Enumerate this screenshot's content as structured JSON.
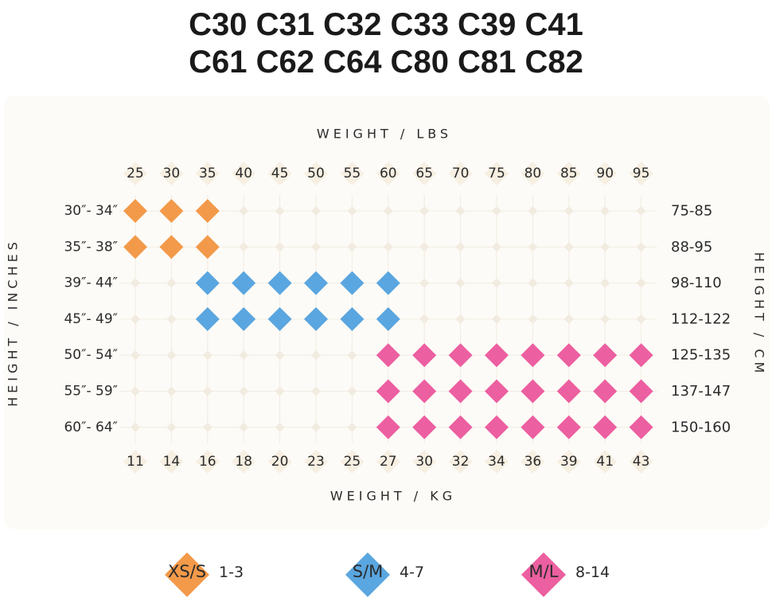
{
  "title": {
    "line1": "C30 C31 C32 C33 C39 C41",
    "line2": "C61 C62 C64 C80 C81 C82"
  },
  "colors": {
    "xs_s": "#f39a4a",
    "s_m": "#5aa6e0",
    "m_l": "#ec5fa0",
    "empty": "#f1ebe0",
    "panel": "#fdfbf7"
  },
  "chart_data": {
    "type": "heatmap",
    "title": "C30 C31 C32 C33 C39 C41 C61 C62 C64 C80 C81 C82",
    "xlabel_top": "WEIGHT / LBS",
    "xlabel_bottom": "WEIGHT / KG",
    "ylabel_left": "HEIGHT / INCHES",
    "ylabel_right": "HEIGHT / CM",
    "x_lbs": [
      "25",
      "30",
      "35",
      "40",
      "45",
      "50",
      "55",
      "60",
      "65",
      "70",
      "75",
      "80",
      "85",
      "90",
      "95"
    ],
    "x_kg": [
      "11",
      "14",
      "16",
      "18",
      "20",
      "23",
      "25",
      "27",
      "30",
      "32",
      "34",
      "36",
      "39",
      "41",
      "43"
    ],
    "y_inches": [
      "30″- 34″",
      "35″- 38″",
      "39″- 44″",
      "45″- 49″",
      "50″- 54″",
      "55″- 59″",
      "60″- 64″"
    ],
    "y_cm": [
      "75-85",
      "88-95",
      "98-110",
      "112-122",
      "125-135",
      "137-147",
      "150-160"
    ],
    "sizes": [
      "XS/S",
      "S/M",
      "M/L"
    ],
    "cells": [
      [
        "XS/S",
        "XS/S",
        "XS/S",
        "",
        "",
        "",
        "",
        "",
        "",
        "",
        "",
        "",
        "",
        "",
        ""
      ],
      [
        "XS/S",
        "XS/S",
        "XS/S",
        "",
        "",
        "",
        "",
        "",
        "",
        "",
        "",
        "",
        "",
        "",
        ""
      ],
      [
        "",
        "",
        "S/M",
        "S/M",
        "S/M",
        "S/M",
        "S/M",
        "S/M",
        "",
        "",
        "",
        "",
        "",
        "",
        ""
      ],
      [
        "",
        "",
        "S/M",
        "S/M",
        "S/M",
        "S/M",
        "S/M",
        "S/M",
        "",
        "",
        "",
        "",
        "",
        "",
        ""
      ],
      [
        "",
        "",
        "",
        "",
        "",
        "",
        "",
        "M/L",
        "M/L",
        "M/L",
        "M/L",
        "M/L",
        "M/L",
        "M/L",
        "M/L"
      ],
      [
        "",
        "",
        "",
        "",
        "",
        "",
        "",
        "M/L",
        "M/L",
        "M/L",
        "M/L",
        "M/L",
        "M/L",
        "M/L",
        "M/L"
      ],
      [
        "",
        "",
        "",
        "",
        "",
        "",
        "",
        "M/L",
        "M/L",
        "M/L",
        "M/L",
        "M/L",
        "M/L",
        "M/L",
        "M/L"
      ]
    ]
  },
  "legend": [
    {
      "label": "XS/S",
      "range": "1-3",
      "color": "#f39a4a"
    },
    {
      "label": "S/M",
      "range": "4-7",
      "color": "#5aa6e0"
    },
    {
      "label": "M/L",
      "range": "8-14",
      "color": "#ec5fa0"
    }
  ]
}
